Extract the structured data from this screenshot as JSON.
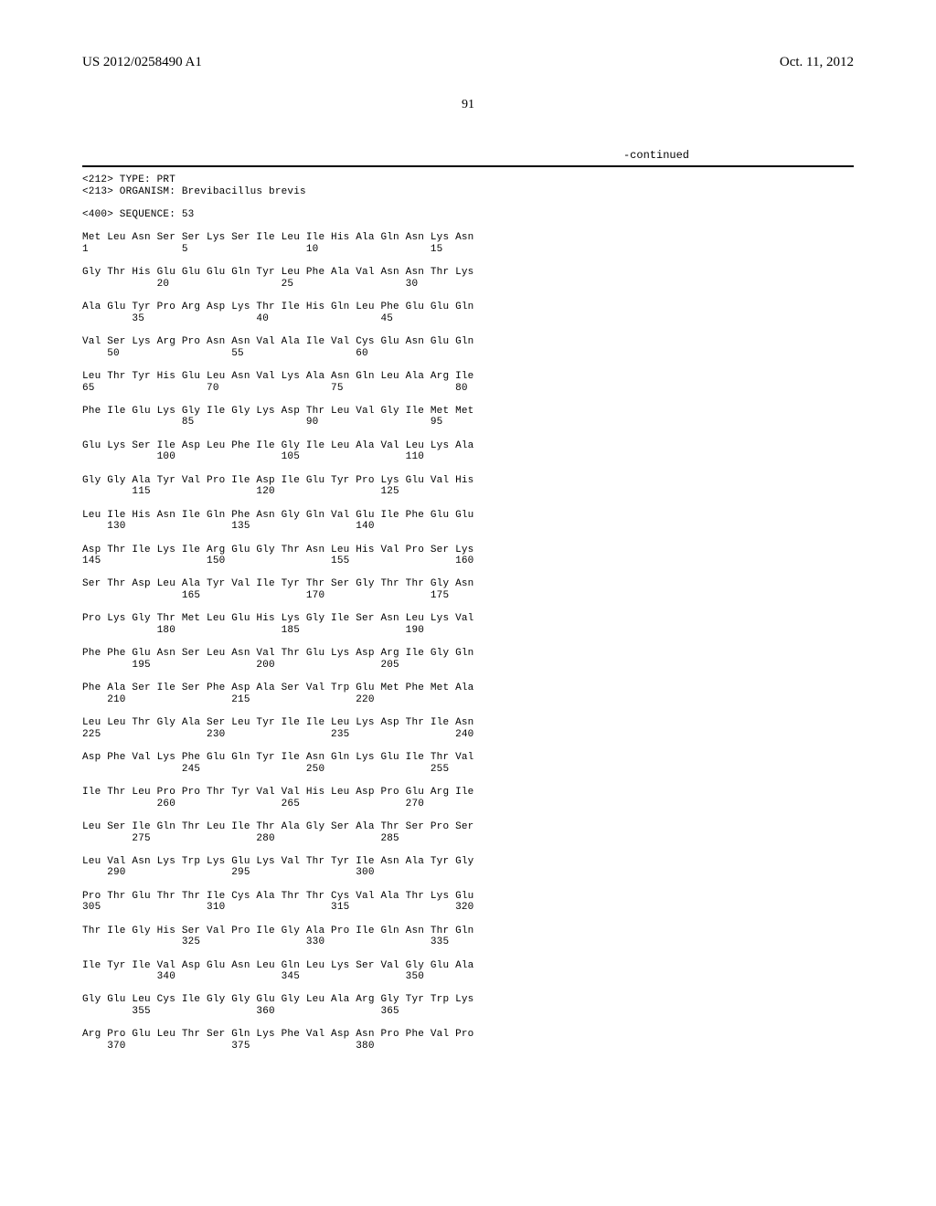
{
  "header": {
    "pub_number": "US 2012/0258490 A1",
    "pub_date": "Oct. 11, 2012"
  },
  "page_number": "91",
  "continued_label": "-continued",
  "seq_meta": {
    "type_line": "<212> TYPE: PRT",
    "organism_line": "<213> ORGANISM: Brevibacillus brevis",
    "sequence_line": "<400> SEQUENCE: 53"
  },
  "sequence_blocks": [
    {
      "aa": "Met Leu Asn Ser Ser Lys Ser Ile Leu Ile His Ala Gln Asn Lys Asn",
      "nums": "1               5                   10                  15"
    },
    {
      "aa": "Gly Thr His Glu Glu Glu Gln Tyr Leu Phe Ala Val Asn Asn Thr Lys",
      "nums": "            20                  25                  30"
    },
    {
      "aa": "Ala Glu Tyr Pro Arg Asp Lys Thr Ile His Gln Leu Phe Glu Glu Gln",
      "nums": "        35                  40                  45"
    },
    {
      "aa": "Val Ser Lys Arg Pro Asn Asn Val Ala Ile Val Cys Glu Asn Glu Gln",
      "nums": "    50                  55                  60"
    },
    {
      "aa": "Leu Thr Tyr His Glu Leu Asn Val Lys Ala Asn Gln Leu Ala Arg Ile",
      "nums": "65                  70                  75                  80"
    },
    {
      "aa": "Phe Ile Glu Lys Gly Ile Gly Lys Asp Thr Leu Val Gly Ile Met Met",
      "nums": "                85                  90                  95"
    },
    {
      "aa": "Glu Lys Ser Ile Asp Leu Phe Ile Gly Ile Leu Ala Val Leu Lys Ala",
      "nums": "            100                 105                 110"
    },
    {
      "aa": "Gly Gly Ala Tyr Val Pro Ile Asp Ile Glu Tyr Pro Lys Glu Val His",
      "nums": "        115                 120                 125"
    },
    {
      "aa": "Leu Ile His Asn Ile Gln Phe Asn Gly Gln Val Glu Ile Phe Glu Glu",
      "nums": "    130                 135                 140"
    },
    {
      "aa": "Asp Thr Ile Lys Ile Arg Glu Gly Thr Asn Leu His Val Pro Ser Lys",
      "nums": "145                 150                 155                 160"
    },
    {
      "aa": "Ser Thr Asp Leu Ala Tyr Val Ile Tyr Thr Ser Gly Thr Thr Gly Asn",
      "nums": "                165                 170                 175"
    },
    {
      "aa": "Pro Lys Gly Thr Met Leu Glu His Lys Gly Ile Ser Asn Leu Lys Val",
      "nums": "            180                 185                 190"
    },
    {
      "aa": "Phe Phe Glu Asn Ser Leu Asn Val Thr Glu Lys Asp Arg Ile Gly Gln",
      "nums": "        195                 200                 205"
    },
    {
      "aa": "Phe Ala Ser Ile Ser Phe Asp Ala Ser Val Trp Glu Met Phe Met Ala",
      "nums": "    210                 215                 220"
    },
    {
      "aa": "Leu Leu Thr Gly Ala Ser Leu Tyr Ile Ile Leu Lys Asp Thr Ile Asn",
      "nums": "225                 230                 235                 240"
    },
    {
      "aa": "Asp Phe Val Lys Phe Glu Gln Tyr Ile Asn Gln Lys Glu Ile Thr Val",
      "nums": "                245                 250                 255"
    },
    {
      "aa": "Ile Thr Leu Pro Pro Thr Tyr Val Val His Leu Asp Pro Glu Arg Ile",
      "nums": "            260                 265                 270"
    },
    {
      "aa": "Leu Ser Ile Gln Thr Leu Ile Thr Ala Gly Ser Ala Thr Ser Pro Ser",
      "nums": "        275                 280                 285"
    },
    {
      "aa": "Leu Val Asn Lys Trp Lys Glu Lys Val Thr Tyr Ile Asn Ala Tyr Gly",
      "nums": "    290                 295                 300"
    },
    {
      "aa": "Pro Thr Glu Thr Thr Ile Cys Ala Thr Thr Cys Val Ala Thr Lys Glu",
      "nums": "305                 310                 315                 320"
    },
    {
      "aa": "Thr Ile Gly His Ser Val Pro Ile Gly Ala Pro Ile Gln Asn Thr Gln",
      "nums": "                325                 330                 335"
    },
    {
      "aa": "Ile Tyr Ile Val Asp Glu Asn Leu Gln Leu Lys Ser Val Gly Glu Ala",
      "nums": "            340                 345                 350"
    },
    {
      "aa": "Gly Glu Leu Cys Ile Gly Gly Glu Gly Leu Ala Arg Gly Tyr Trp Lys",
      "nums": "        355                 360                 365"
    },
    {
      "aa": "Arg Pro Glu Leu Thr Ser Gln Lys Phe Val Asp Asn Pro Phe Val Pro",
      "nums": "    370                 375                 380"
    }
  ]
}
